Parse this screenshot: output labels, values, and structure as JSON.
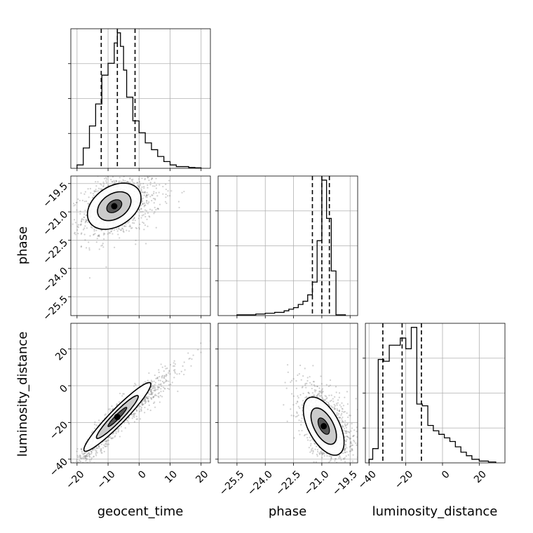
{
  "chart_data": {
    "type": "corner",
    "parameters": [
      "geocent_time",
      "phase",
      "luminosity_distance"
    ],
    "labels": {
      "geocent_time": "geocent_time",
      "phase": "phase",
      "luminosity_distance": "luminosity_distance"
    },
    "ranges": {
      "geocent_time": [
        -22,
        23
      ],
      "phase": [
        -26.5,
        -19.1
      ],
      "luminosity_distance": [
        -42,
        34
      ]
    },
    "ticks": {
      "geocent_time": [
        {
          "value": -20,
          "label": "−20"
        },
        {
          "value": -10,
          "label": "−10"
        },
        {
          "value": 0,
          "label": "0"
        },
        {
          "value": 10,
          "label": "10"
        },
        {
          "value": 20,
          "label": "20"
        }
      ],
      "phase": [
        {
          "value": -25.5,
          "label": "−25.5"
        },
        {
          "value": -24.0,
          "label": "−24.0"
        },
        {
          "value": -22.5,
          "label": "−22.5"
        },
        {
          "value": -21.0,
          "label": "−21.0"
        },
        {
          "value": -19.5,
          "label": "−19.5"
        }
      ],
      "luminosity_distance": [
        {
          "value": -40,
          "label": "−40"
        },
        {
          "value": -20,
          "label": "−20"
        },
        {
          "value": 0,
          "label": "0"
        },
        {
          "value": 20,
          "label": "20"
        }
      ]
    },
    "quantile_lines": {
      "geocent_time": [
        -12.2,
        -7.0,
        -1.3
      ],
      "phase": [
        -21.5,
        -21.0,
        -20.6
      ],
      "luminosity_distance": [
        -32.5,
        -22.0,
        -11.5
      ]
    },
    "histograms": {
      "geocent_time": {
        "edges": [
          -20,
          -18,
          -16,
          -14,
          -12,
          -10,
          -8,
          -7,
          -6,
          -5,
          -4,
          -2,
          0,
          2,
          4,
          6,
          8,
          10,
          12,
          14,
          16,
          18,
          20
        ],
        "counts": [
          2,
          12,
          25,
          38,
          55,
          62,
          74,
          80,
          72,
          58,
          42,
          28,
          21,
          15,
          11,
          7,
          4,
          2,
          1,
          1,
          0.5,
          0.3
        ]
      },
      "phase": {
        "edges": [
          -25.5,
          -25.0,
          -24.5,
          -24.0,
          -23.5,
          -23.0,
          -22.75,
          -22.5,
          -22.25,
          -22.0,
          -21.75,
          -21.5,
          -21.25,
          -21.0,
          -20.75,
          -20.5,
          -20.25,
          -19.75
        ],
        "counts": [
          0.5,
          0.5,
          1,
          1.5,
          2,
          3,
          4,
          5,
          7,
          9,
          13,
          21,
          47,
          85,
          61,
          28,
          0.5
        ]
      },
      "luminosity_distance": {
        "edges": [
          -40,
          -38,
          -35,
          -32,
          -29,
          -26,
          -23,
          -20,
          -17,
          -14,
          -11,
          -8,
          -5,
          -2,
          1,
          4,
          7,
          10,
          13,
          16,
          20,
          25,
          29
        ],
        "counts": [
          2,
          8,
          58,
          57,
          66,
          66,
          70,
          64,
          76,
          33,
          32,
          21,
          18,
          16,
          14,
          12,
          9,
          6,
          4,
          2,
          1,
          0.5
        ]
      }
    },
    "density_samples": {
      "phase_vs_geocent_time": {
        "center": [
          -8.0,
          -20.7
        ],
        "sd": [
          6.0,
          0.85
        ],
        "corr": 0.35,
        "n": 1100
      },
      "luminosity_distance_vs_geocent_time": {
        "center": [
          -7.0,
          -17.0
        ],
        "sd": [
          7.5,
          13.0
        ],
        "corr": 0.95,
        "n": 1100
      },
      "luminosity_distance_vs_phase": {
        "center": [
          -20.9,
          -22.0
        ],
        "sd": [
          0.75,
          11.0
        ],
        "corr": -0.55,
        "n": 1100
      }
    }
  }
}
